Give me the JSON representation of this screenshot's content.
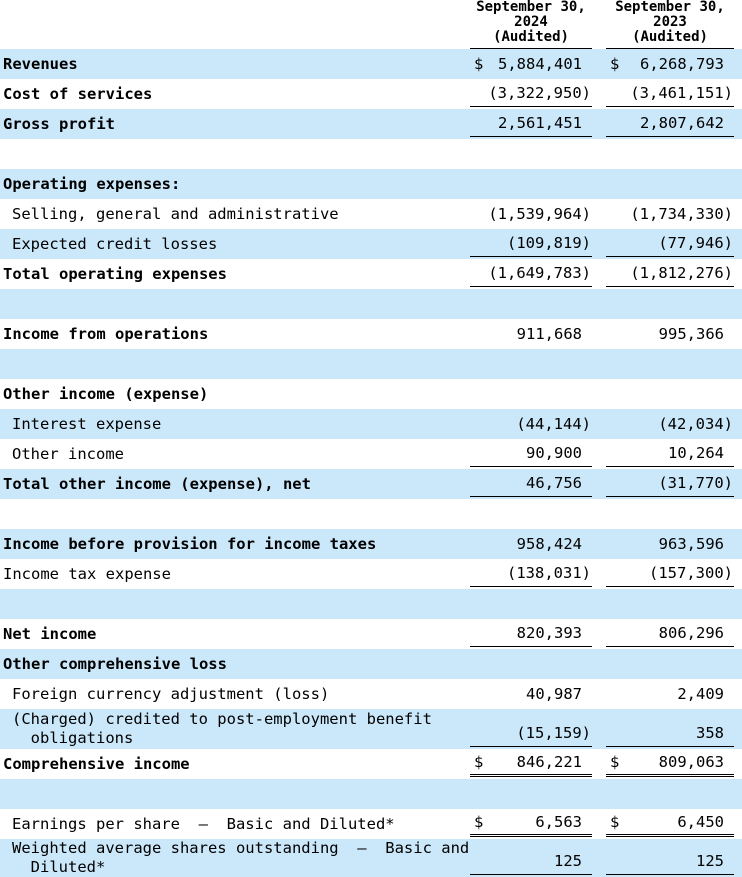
{
  "colors": {
    "row_band_blue": "#cbe8fa",
    "text": "#000000",
    "rule": "#000000"
  },
  "table": {
    "col_headers": [
      "September 30,\n2024\n(Audited)",
      "September 30,\n2023\n(Audited)"
    ],
    "rows": [
      {
        "label": "Revenues",
        "c1": {
          "cur": "$",
          "val": "5,884,401"
        },
        "c2": {
          "cur": "$",
          "val": "6,268,793"
        }
      },
      {
        "label": "Cost of services",
        "c1": {
          "cur": "",
          "val": "(3,322,950)"
        },
        "c2": {
          "cur": "",
          "val": "(3,461,151)"
        }
      },
      {
        "label": "Gross profit",
        "c1": {
          "cur": "",
          "val": "2,561,451"
        },
        "c2": {
          "cur": "",
          "val": "2,807,642"
        }
      },
      {
        "label": "Operating expenses:",
        "c1": {
          "cur": "",
          "val": ""
        },
        "c2": {
          "cur": "",
          "val": ""
        }
      },
      {
        "label": "Selling, general and administrative",
        "c1": {
          "cur": "",
          "val": "(1,539,964)"
        },
        "c2": {
          "cur": "",
          "val": "(1,734,330)"
        }
      },
      {
        "label": "Expected credit losses",
        "c1": {
          "cur": "",
          "val": "(109,819)"
        },
        "c2": {
          "cur": "",
          "val": "(77,946)"
        }
      },
      {
        "label": "Total operating expenses",
        "c1": {
          "cur": "",
          "val": "(1,649,783)"
        },
        "c2": {
          "cur": "",
          "val": "(1,812,276)"
        }
      },
      {
        "label": "Income from operations",
        "c1": {
          "cur": "",
          "val": "911,668"
        },
        "c2": {
          "cur": "",
          "val": "995,366"
        }
      },
      {
        "label": "Other income (expense)",
        "c1": {
          "cur": "",
          "val": ""
        },
        "c2": {
          "cur": "",
          "val": ""
        }
      },
      {
        "label": "Interest expense",
        "c1": {
          "cur": "",
          "val": "(44,144)"
        },
        "c2": {
          "cur": "",
          "val": "(42,034)"
        }
      },
      {
        "label": "Other income",
        "c1": {
          "cur": "",
          "val": "90,900"
        },
        "c2": {
          "cur": "",
          "val": "10,264"
        }
      },
      {
        "label": "Total other income (expense), net",
        "c1": {
          "cur": "",
          "val": "46,756"
        },
        "c2": {
          "cur": "",
          "val": "(31,770)"
        }
      },
      {
        "label": "Income before provision for income taxes",
        "c1": {
          "cur": "",
          "val": "958,424"
        },
        "c2": {
          "cur": "",
          "val": "963,596"
        }
      },
      {
        "label": "Income tax expense",
        "c1": {
          "cur": "",
          "val": "(138,031)"
        },
        "c2": {
          "cur": "",
          "val": "(157,300)"
        }
      },
      {
        "label": "Net income",
        "c1": {
          "cur": "",
          "val": "820,393"
        },
        "c2": {
          "cur": "",
          "val": "806,296"
        }
      },
      {
        "label": "Other comprehensive loss",
        "c1": {
          "cur": "",
          "val": ""
        },
        "c2": {
          "cur": "",
          "val": ""
        }
      },
      {
        "label": "Foreign currency adjustment (loss)",
        "c1": {
          "cur": "",
          "val": "40,987"
        },
        "c2": {
          "cur": "",
          "val": "2,409"
        }
      },
      {
        "label": "(Charged) credited to post-employment benefit\n  obligations",
        "c1": {
          "cur": "",
          "val": "(15,159)"
        },
        "c2": {
          "cur": "",
          "val": "358"
        }
      },
      {
        "label": "Comprehensive income",
        "c1": {
          "cur": "$",
          "val": "846,221"
        },
        "c2": {
          "cur": "$",
          "val": "809,063"
        }
      },
      {
        "label": "Earnings per share  –  Basic and Diluted*",
        "c1": {
          "cur": "$",
          "val": "6,563"
        },
        "c2": {
          "cur": "$",
          "val": "6,450"
        }
      },
      {
        "label": "Weighted average shares outstanding  –  Basic and\n  Diluted*",
        "c1": {
          "cur": "",
          "val": "125"
        },
        "c2": {
          "cur": "",
          "val": "125"
        }
      }
    ]
  }
}
